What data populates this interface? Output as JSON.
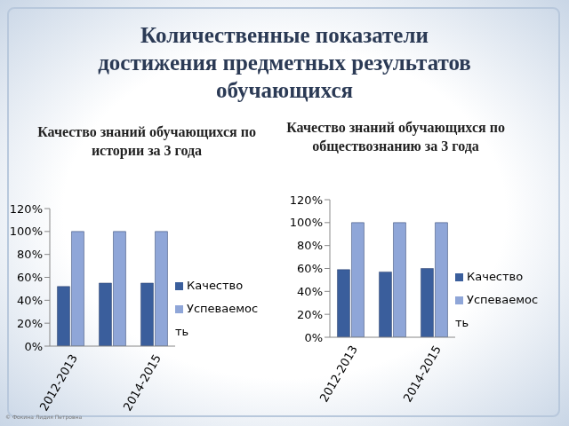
{
  "title": "Количественные показатели достижения предметных результатов обучающихся",
  "footer": "© Фокина Лидия Петровна",
  "chart_data": [
    {
      "type": "bar",
      "title": "Качество знаний обучающихся по истории за 3 года",
      "categories": [
        "2012-2013",
        null,
        "2014-2015"
      ],
      "series": [
        {
          "name": "Качество",
          "color": "#3a5e9c",
          "values": [
            52,
            55,
            55
          ]
        },
        {
          "name": "Успеваемость",
          "color": "#8fa6d8",
          "values": [
            100,
            100,
            100
          ]
        }
      ],
      "ylim": [
        0,
        120
      ],
      "yticks": [
        {
          "value": 0,
          "label": "0%"
        },
        {
          "value": 20,
          "label": "20%"
        },
        {
          "value": 40,
          "label": "40%"
        },
        {
          "value": 60,
          "label": "60%"
        },
        {
          "value": 80,
          "label": "80%"
        },
        {
          "value": 100,
          "label": "100%"
        },
        {
          "value": 120,
          "label": "120%"
        }
      ],
      "grid": false,
      "legend": "right"
    },
    {
      "type": "bar",
      "title": "Качество знаний обучающихся по обществознанию за 3 года",
      "categories": [
        "2012-2013",
        null,
        "2014-2015"
      ],
      "series": [
        {
          "name": "Качество",
          "color": "#3a5e9c",
          "values": [
            59,
            57,
            60
          ]
        },
        {
          "name": "Успеваемость",
          "color": "#8fa6d8",
          "values": [
            100,
            100,
            100
          ]
        }
      ],
      "ylim": [
        0,
        120
      ],
      "yticks": [
        {
          "value": 0,
          "label": "0%"
        },
        {
          "value": 20,
          "label": "20%"
        },
        {
          "value": 40,
          "label": "40%"
        },
        {
          "value": 60,
          "label": "60%"
        },
        {
          "value": 80,
          "label": "80%"
        },
        {
          "value": 100,
          "label": "100%"
        },
        {
          "value": 120,
          "label": "120%"
        }
      ],
      "grid": false,
      "legend": "right"
    }
  ]
}
